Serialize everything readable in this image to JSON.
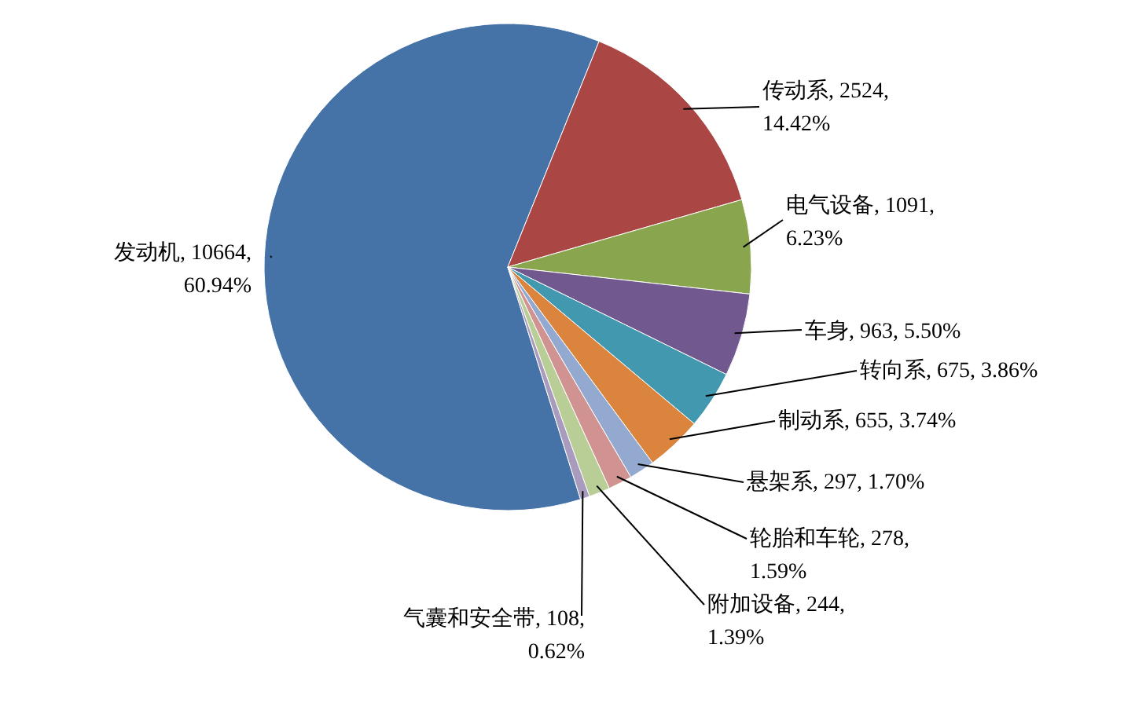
{
  "chart_data": {
    "type": "pie",
    "categories": [
      "发动机",
      "传动系",
      "电气设备",
      "车身",
      "转向系",
      "制动系",
      "悬架系",
      "轮胎和车轮",
      "附加设备",
      "气囊和安全带"
    ],
    "values": [
      10664,
      2524,
      1091,
      963,
      675,
      655,
      297,
      278,
      244,
      108
    ],
    "colors": [
      "#4572a7",
      "#aa4643",
      "#89a54e",
      "#71588f",
      "#4198af",
      "#db843d",
      "#93a9cf",
      "#d19392",
      "#b9cd96",
      "#a99bbd"
    ],
    "value_labels": [
      "10664,\n60.94%",
      "2524,\n14.42%",
      "1091,\n6.23%",
      "963,  5.50%",
      "675,  3.86%",
      "655,  3.74%",
      "297,  1.70%",
      "278,\n1.59%",
      "244,\n1.39%",
      "108,\n0.62%"
    ]
  }
}
